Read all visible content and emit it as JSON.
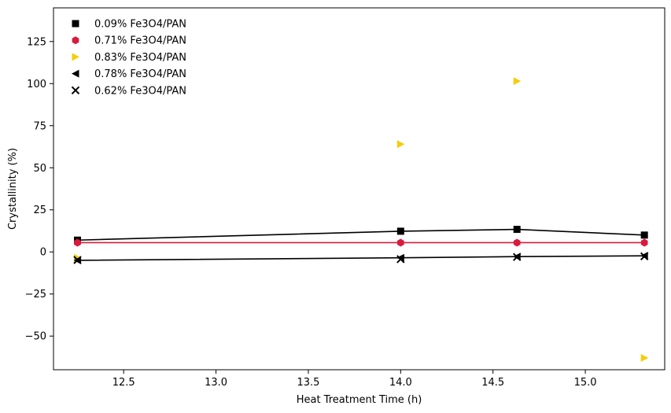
{
  "chart_data": {
    "type": "scatter",
    "title": "",
    "xlabel": "Heat Treatment Time (h)",
    "ylabel": "Crystallinity (%)",
    "xlim": [
      12.12,
      15.43
    ],
    "ylim": [
      -70,
      145
    ],
    "xticks": [
      12.5,
      13.0,
      13.5,
      14.0,
      14.5,
      15.0
    ],
    "xtick_labels": [
      "12.5",
      "13.0",
      "13.5",
      "14.0",
      "14.5",
      "15.0"
    ],
    "yticks": [
      -50,
      -25,
      0,
      25,
      50,
      75,
      100,
      125
    ],
    "ytick_labels": [
      "−50",
      "−25",
      "0",
      "25",
      "50",
      "75",
      "100",
      "125"
    ],
    "grid": false,
    "legend_position": "top-left",
    "series": [
      {
        "name": "0.09% Fe3O4/PAN",
        "marker": "square",
        "color": "#000000",
        "line": true,
        "line_color": "#000000",
        "x": [
          12.25,
          14.0,
          14.63,
          15.32
        ],
        "y": [
          7.0,
          12.3,
          13.4,
          10.0
        ]
      },
      {
        "name": "0.71% Fe3O4/PAN",
        "marker": "hexagon",
        "color": "#d81b3c",
        "line": true,
        "line_color": "#d81b3c",
        "x": [
          12.25,
          14.0,
          14.63,
          15.32
        ],
        "y": [
          5.5,
          5.5,
          5.5,
          5.5
        ]
      },
      {
        "name": "0.83% Fe3O4/PAN",
        "marker": "triangle-right",
        "color": "#f5cd0a",
        "line": false,
        "x": [
          12.25,
          14.0,
          14.63,
          15.32
        ],
        "y": [
          -3.5,
          64.0,
          101.5,
          -63.0
        ]
      },
      {
        "name": "0.78% Fe3O4/PAN",
        "marker": "triangle-left",
        "color": "#000000",
        "line": true,
        "line_color": "#000000",
        "x": [
          12.25,
          14.0,
          14.63,
          15.32
        ],
        "y": [
          -5.0,
          -3.5,
          -2.8,
          -2.3
        ]
      },
      {
        "name": "0.62% Fe3O4/PAN",
        "marker": "x",
        "color": "#000000",
        "line": false,
        "x": [
          12.25,
          14.0,
          14.63,
          15.32
        ],
        "y": [
          -4.8,
          -4.3,
          -3.0,
          -2.6
        ]
      }
    ]
  }
}
